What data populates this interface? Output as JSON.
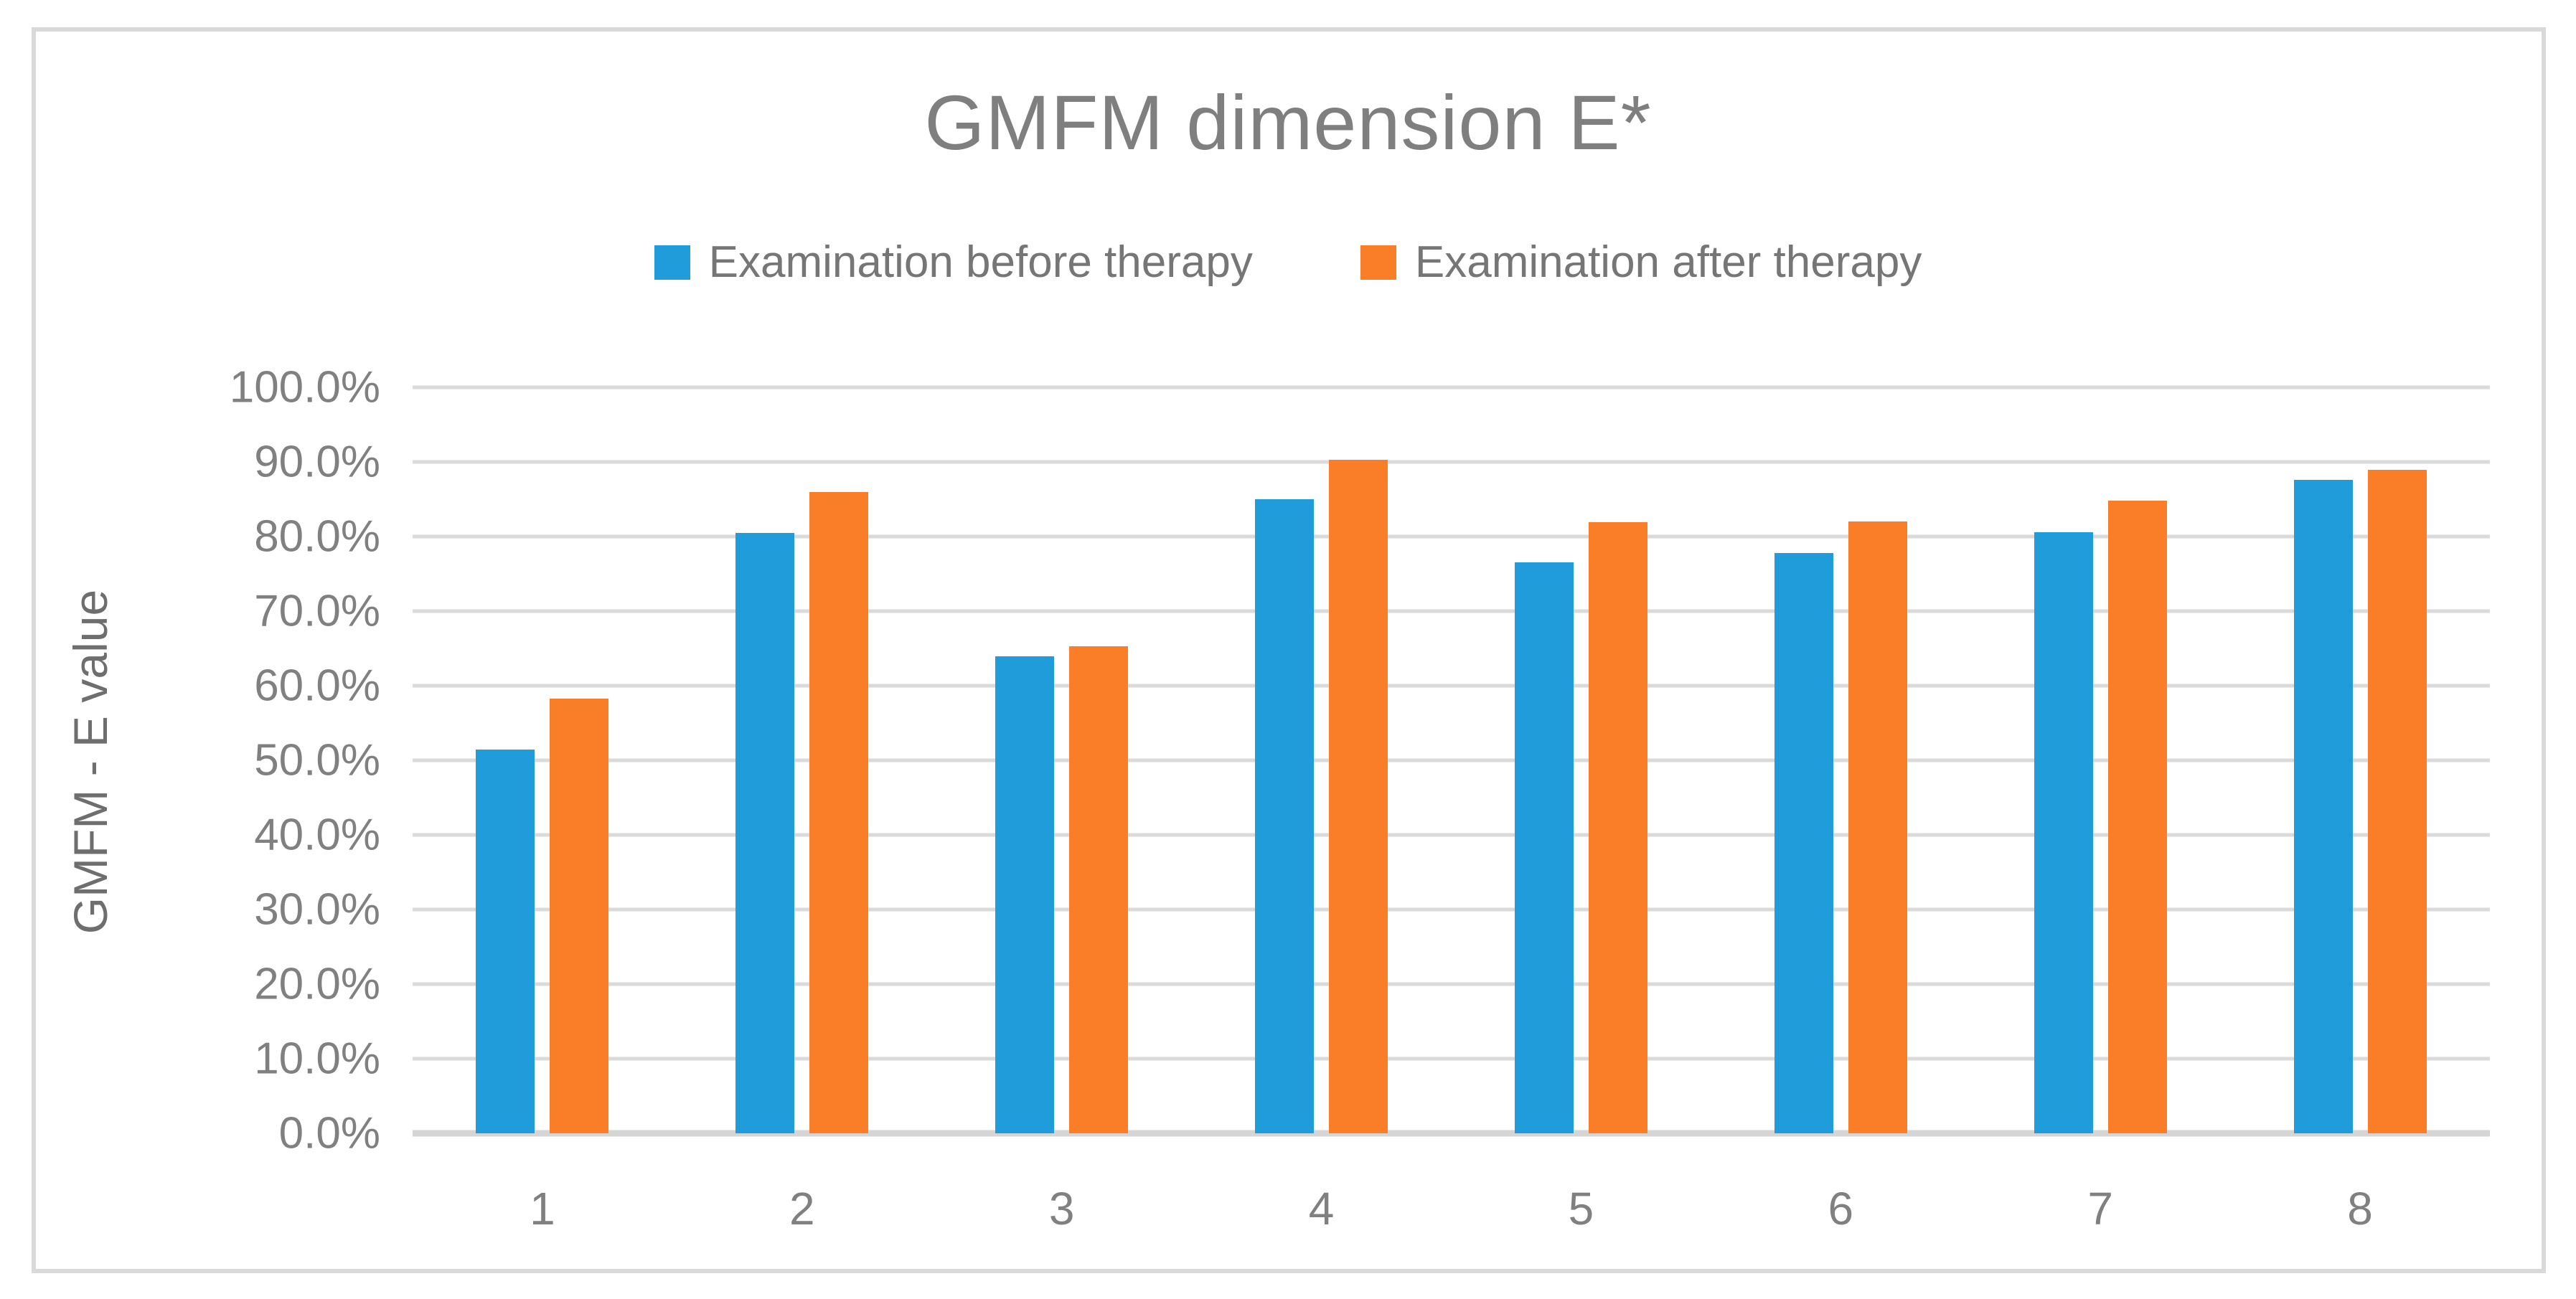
{
  "title": "GMFM dimension E*",
  "legend": [
    {
      "label": "Examination before therapy",
      "color": "#1F9CD9"
    },
    {
      "label": "Examination after therapy",
      "color": "#FA7E27"
    }
  ],
  "chart_data": {
    "type": "bar",
    "title": "GMFM dimension E*",
    "categories": [
      "1",
      "2",
      "3",
      "4",
      "5",
      "6",
      "7",
      "8"
    ],
    "series": [
      {
        "name": "Examination before therapy",
        "color": "#1F9CD9",
        "values": [
          51.4,
          80.5,
          63.9,
          85.0,
          76.5,
          77.8,
          80.6,
          87.6
        ]
      },
      {
        "name": "Examination after therapy",
        "color": "#FA7E27",
        "values": [
          58.3,
          86.0,
          65.3,
          90.3,
          81.9,
          82.0,
          84.8,
          88.9
        ]
      }
    ],
    "xlabel": "",
    "ylabel": "GMFM - E value",
    "ylim": [
      0,
      100
    ],
    "ytick_step": 10,
    "ytick_labels": [
      "100.0%",
      "90.0%",
      "80.0%",
      "70.0%",
      "60.0%",
      "50.0%",
      "40.0%",
      "30.0%",
      "20.0%",
      "10.0%",
      "0.0%"
    ],
    "value_unit": "%",
    "grid": true,
    "legend_position": "top"
  },
  "colors": {
    "series_before": "#1F9CD9",
    "series_after": "#FA7E27",
    "gridline": "#DADADA",
    "axis_line": "#D5D5D5",
    "text_gray": "#7F7F7F",
    "frame_border": "#D9D9D9",
    "background": "#FFFFFF"
  }
}
